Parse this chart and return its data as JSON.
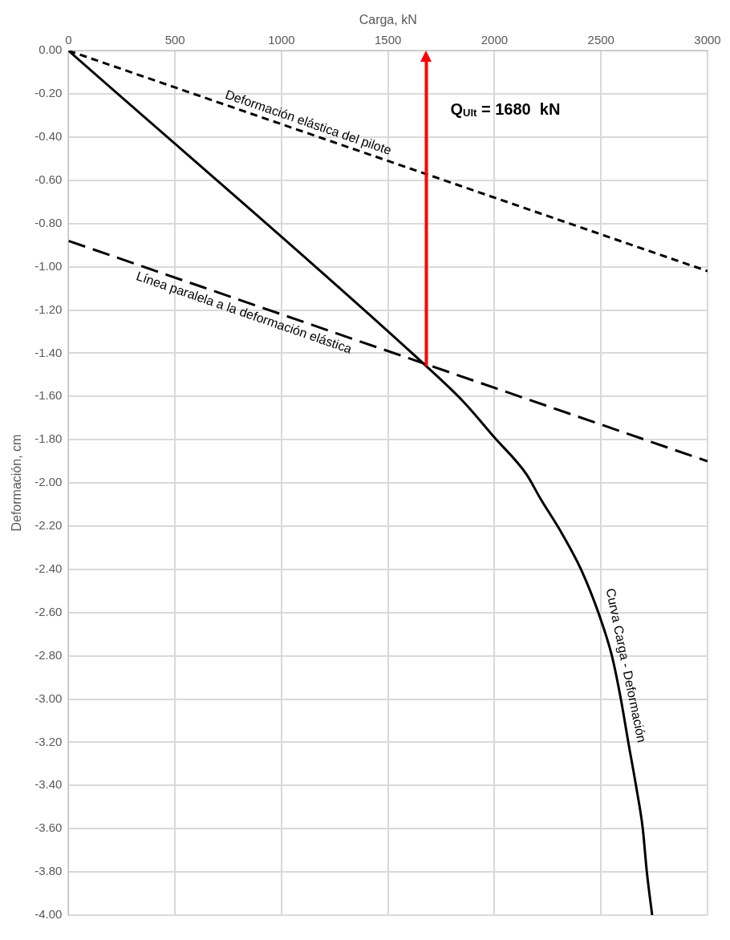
{
  "chart_data": {
    "type": "line",
    "xlabel": "Carga, kN",
    "ylabel": "Deformación, cm",
    "xlim": [
      0,
      3000
    ],
    "xticks": [
      0,
      500,
      1000,
      1500,
      2000,
      2500,
      3000
    ],
    "ylim": [
      -4,
      0
    ],
    "yticks": [
      {
        "value": 0,
        "label": "0.00"
      },
      {
        "value": -0.2,
        "label": "-0.20"
      },
      {
        "value": -0.4,
        "label": "-0.40"
      },
      {
        "value": -0.6,
        "label": "-0.60"
      },
      {
        "value": -0.8,
        "label": "-0.80"
      },
      {
        "value": -1,
        "label": "-1.00"
      },
      {
        "value": -1.2,
        "label": "-1.20"
      },
      {
        "value": -1.4,
        "label": "-1.40"
      },
      {
        "value": -1.6,
        "label": "-1.60"
      },
      {
        "value": -1.8,
        "label": "-1.80"
      },
      {
        "value": -2,
        "label": "-2.00"
      },
      {
        "value": -2.2,
        "label": "-2.20"
      },
      {
        "value": -2.4,
        "label": "-2.40"
      },
      {
        "value": -2.6,
        "label": "-2.60"
      },
      {
        "value": -2.8,
        "label": "-2.80"
      },
      {
        "value": -3,
        "label": "-3.00"
      },
      {
        "value": -3.2,
        "label": "-3.20"
      },
      {
        "value": -3.4,
        "label": "-3.40"
      },
      {
        "value": -3.6,
        "label": "-3.60"
      },
      {
        "value": -3.8,
        "label": "-3.80"
      },
      {
        "value": -4,
        "label": "-4.00"
      }
    ],
    "grid": true,
    "legend": false,
    "marker": "none",
    "series": [
      {
        "name": "Curva Carga - Deformación",
        "color": "#000000",
        "line_style": "solid",
        "x": [
          0,
          1680,
          1850,
          2000,
          2150,
          2214,
          2317,
          2406,
          2491,
          2551,
          2593,
          2628,
          2664,
          2696,
          2715,
          2740
        ],
        "values": [
          0,
          -1.46,
          -1.62,
          -1.79,
          -1.96,
          -2.07,
          -2.235,
          -2.4,
          -2.61,
          -2.8,
          -3,
          -3.2,
          -3.4,
          -3.6,
          -3.8,
          -4
        ]
      },
      {
        "name": "Deformación elástica del pilote",
        "color": "#000000",
        "line_style": "dashed",
        "x": [
          0,
          3000
        ],
        "values": [
          0,
          -1.02
        ]
      },
      {
        "name": "Línea paralela a la deformación elástica",
        "color": "#000000",
        "line_style": "dashed",
        "x": [
          0,
          3000
        ],
        "values": [
          -0.88,
          -1.9
        ]
      }
    ],
    "ref_lines": [
      {
        "axis": "x",
        "value": 1680,
        "color": "#ff0000"
      }
    ],
    "annotations": [
      "Q$_{Ult}$ = 1680  kN"
    ]
  }
}
